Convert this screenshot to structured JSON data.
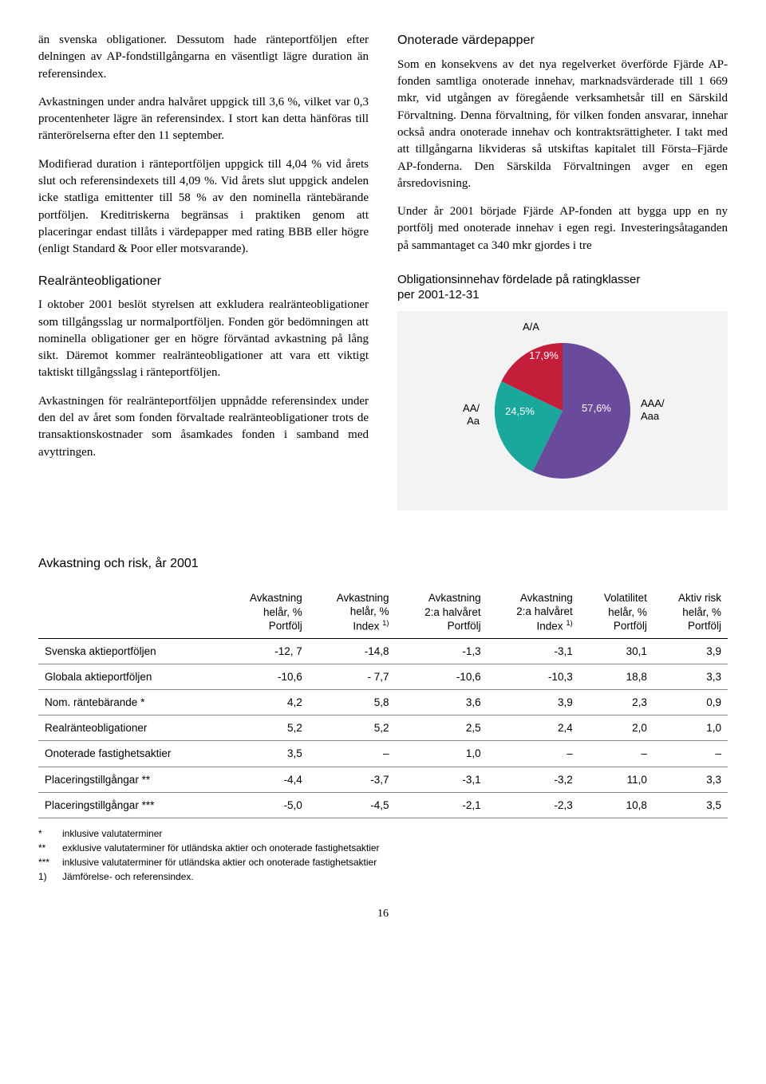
{
  "leftCol": {
    "p1": "än svenska obligationer. Dessutom hade ränteportföljen efter delningen av AP-fondstillgångarna en väsentligt lägre duration än referensindex.",
    "p2": "Avkastningen under andra halvåret uppgick till 3,6 %, vilket var 0,3 procentenheter lägre än referensindex. I stort kan detta hänföras till ränterörelserna efter den 11 september.",
    "p3": "Modifierad duration i ränteportföljen uppgick till 4,04 % vid årets slut och referensindexets till 4,09 %. Vid årets slut uppgick andelen icke statliga emittenter till 58 % av den nominella räntebärande portföljen. Kreditriskerna begränsas i praktiken genom att placeringar endast tillåts i värdepapper med rating BBB eller högre (enligt Standard & Poor eller motsvarande).",
    "h1": "Realränteobligationer",
    "p4": "I oktober 2001 beslöt styrelsen att exkludera realränteobligationer som tillgångsslag ur normalportföljen. Fonden gör bedömningen att nominella obligationer ger en högre förväntad avkastning på lång sikt. Däremot kommer realränteobligationer att vara ett viktigt taktiskt tillgångsslag i ränteportföljen.",
    "p5": "Avkastningen för realränteportföljen uppnådde referensindex under den del av året som fonden förvaltade realränteobligationer trots de transaktionskostnader som åsamkades fonden i samband med avyttringen."
  },
  "rightCol": {
    "h1": "Onoterade värdepapper",
    "p1": "Som en konsekvens av det nya regelverket överförde Fjärde AP-fonden samtliga onoterade innehav, marknadsvärderade till 1 669 mkr, vid utgången av föregående verksamhetsår till en Särskild Förvaltning. Denna förvaltning, för vilken fonden ansvarar, innehar också andra onoterade innehav och kontraktsrättigheter. I takt med att tillgångarna likvideras så utskiftas kapitalet till Första–Fjärde AP-fonderna. Den Särskilda Förvaltningen avger en egen årsredovisning.",
    "p2": "Under år 2001 började Fjärde AP-fonden att bygga upp en ny portfölj med onoterade innehav i egen regi. Investeringsåtaganden på sammantaget ca 340 mkr gjordes i tre"
  },
  "chart": {
    "title_l1": "Obligationsinnehav fördelade på ratingklasser",
    "title_l2": "per 2001-12-31",
    "bg": "#f3f3f3",
    "slices": [
      {
        "label": "A/A",
        "pct": "17,9%",
        "value": 17.9,
        "color": "#c41e3a"
      },
      {
        "label": "AA/\nAa",
        "pct": "24,5%",
        "value": 24.5,
        "color": "#1aa89c"
      },
      {
        "label": "AAA/\nAaa",
        "pct": "57,6%",
        "value": 57.6,
        "color": "#6a4a9a"
      }
    ],
    "label_a": "A/A",
    "label_a_pct": "17,9%",
    "label_aa": "AA/",
    "label_aa2": "Aa",
    "label_aa_pct": "24,5%",
    "label_aaa": "AAA/",
    "label_aaa2": "Aaa",
    "label_aaa_pct": "57,6%"
  },
  "table": {
    "title": "Avkastning och risk, år 2001",
    "headers": [
      "",
      "Avkastning\nhelår, %\nPortfölj",
      "Avkastning\nhelår, %\nIndex 1)",
      "Avkastning\n2:a halvåret\nPortfölj",
      "Avkastning\n2:a halvåret\nIndex 1)",
      "Volatilitet\nhelår, %\nPortfölj",
      "Aktiv risk\nhelår, %\nPortfölj"
    ],
    "h1a": "Avkastning",
    "h1b": "helår, %",
    "h1c": "Portfölj",
    "h2a": "Avkastning",
    "h2b": "helår, %",
    "h2c_pre": "Index ",
    "h2c_sup": "1)",
    "h3a": "Avkastning",
    "h3b": "2:a halvåret",
    "h3c": "Portfölj",
    "h4a": "Avkastning",
    "h4b": "2:a halvåret",
    "h4c_pre": "Index ",
    "h4c_sup": "1)",
    "h5a": "Volatilitet",
    "h5b": "helår, %",
    "h5c": "Portfölj",
    "h6a": "Aktiv risk",
    "h6b": "helår, %",
    "h6c": "Portfölj",
    "rows": [
      {
        "name": "Svenska aktieportföljen",
        "c": [
          "-12, 7",
          "-14,8",
          "-1,3",
          "-3,1",
          "30,1",
          "3,9"
        ]
      },
      {
        "name": "Globala aktieportföljen",
        "c": [
          "-10,6",
          "- 7,7",
          "-10,6",
          "-10,3",
          "18,8",
          "3,3"
        ]
      },
      {
        "name": "Nom. räntebärande *",
        "c": [
          "4,2",
          "5,8",
          "3,6",
          "3,9",
          "2,3",
          "0,9"
        ]
      },
      {
        "name": "Realränteobligationer",
        "c": [
          "5,2",
          "5,2",
          "2,5",
          "2,4",
          "2,0",
          "1,0"
        ]
      },
      {
        "name": "Onoterade fastighetsaktier",
        "c": [
          "3,5",
          "–",
          "1,0",
          "–",
          "–",
          "–"
        ]
      },
      {
        "name": "Placeringstillgångar **",
        "c": [
          "-4,4",
          "-3,7",
          "-3,1",
          "-3,2",
          "11,0",
          "3,3"
        ]
      },
      {
        "name": "Placeringstillgångar ***",
        "c": [
          "-5,0",
          "-4,5",
          "-2,1",
          "-2,3",
          "10,8",
          "3,5"
        ]
      }
    ],
    "footnotes": [
      {
        "mark": "*",
        "text": "inklusive valutaterminer"
      },
      {
        "mark": "**",
        "text": "exklusive valutaterminer för utländska aktier och onoterade fastighetsaktier"
      },
      {
        "mark": "***",
        "text": "inklusive valutaterminer för utländska aktier och onoterade fastighetsaktier"
      },
      {
        "mark": "1)",
        "text": "Jämförelse- och referensindex."
      }
    ]
  },
  "pageNumber": "16"
}
